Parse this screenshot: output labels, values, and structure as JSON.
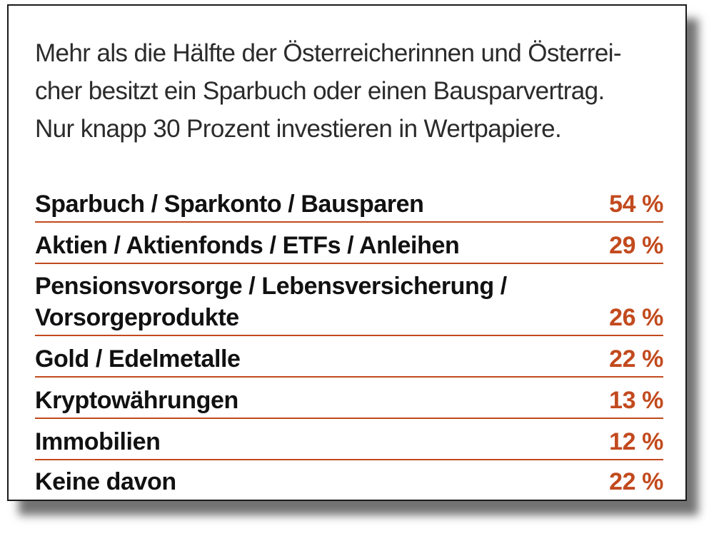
{
  "intro_lines": [
    "Mehr als die Hälfte der Österreicherinnen und Österrei-",
    "cher besitzt ein Sparbuch oder einen Bausparvertrag.",
    "Nur knapp 30 Prozent investieren in Wertpapiere."
  ],
  "colors": {
    "accent": "#c24a1e",
    "text": "#111111",
    "intro_text": "#2b2b2b"
  },
  "chart_data": {
    "type": "table",
    "title": "",
    "categories": [
      "Sparbuch / Sparkonto / Bausparen",
      "Aktien / Aktienfonds / ETFs / Anleihen",
      "Pensionsvorsorge / Lebensversicherung /\nVorsorgeprodukte",
      "Gold / Edelmetalle",
      "Kryptowährungen",
      "Immobilien",
      "Keine davon"
    ],
    "values": [
      54,
      29,
      26,
      22,
      13,
      12,
      22
    ],
    "value_labels": [
      "54 %",
      "29 %",
      "26 %",
      "22 %",
      "13 %",
      "12 %",
      "22 %"
    ],
    "unit": "%"
  }
}
